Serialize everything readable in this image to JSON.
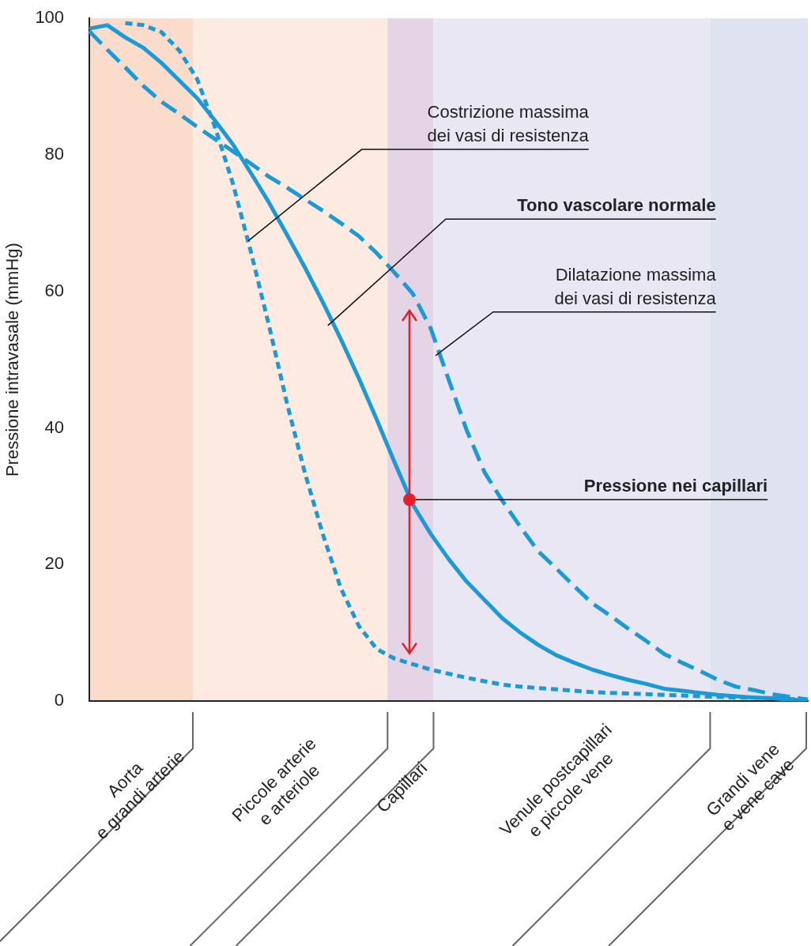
{
  "chart_data": {
    "type": "line",
    "ylabel": "Pressione intravasale (mmHg)",
    "categories": [
      null,
      null,
      null,
      null,
      null,
      null,
      null,
      null,
      null,
      null,
      null,
      null,
      null,
      null,
      null,
      null,
      null,
      null,
      null,
      null,
      null,
      null,
      null,
      null,
      null,
      null,
      null,
      null,
      null,
      null,
      null,
      null,
      null,
      null,
      null,
      null,
      null,
      null,
      null,
      null,
      null
    ],
    "ylim": [
      0,
      100
    ],
    "yticks": [
      0,
      20,
      40,
      60,
      80,
      100
    ],
    "tick_labels": "y",
    "marker": "none",
    "series": [
      {
        "color": "#1a9ad6",
        "line_style": "solid",
        "values": [
          98.5,
          99,
          97.2,
          95.7,
          93.5,
          90.9,
          88.3,
          85,
          81.5,
          77.3,
          73,
          68.3,
          63.5,
          58.4,
          53,
          47.3,
          41.2,
          34.9,
          28.8,
          24.5,
          20.8,
          17.5,
          14.8,
          12.1,
          10,
          8.2,
          6.7,
          5.6,
          4.6,
          3.8,
          3.1,
          2.5,
          1.8,
          1.5,
          1.2,
          0.9,
          0.7,
          0.5,
          0.4,
          0.2,
          0.1
        ]
      },
      {
        "color": "#1a9ad6",
        "line_style": "dotted",
        "values": [
          null,
          null,
          99.3,
          99,
          98,
          95.3,
          91.1,
          84,
          75.7,
          65.7,
          55,
          43.6,
          33.4,
          24.4,
          16.5,
          11,
          7.6,
          6.2,
          5.4,
          4.6,
          4,
          3.4,
          2.9,
          2.4,
          2.1,
          1.9,
          1.7,
          1.5,
          1.3,
          1.2,
          1.1,
          1,
          0.9,
          0.8,
          0.7,
          0.6,
          0.5,
          0.5,
          0.4,
          0.3,
          0.2
        ]
      },
      {
        "color": "#1a9ad6",
        "line_style": "dashed",
        "values": [
          98.1,
          95.4,
          92.8,
          90.1,
          87.8,
          86,
          84.1,
          82.3,
          80.5,
          78.7,
          76.8,
          75.2,
          73.5,
          71.8,
          70,
          68.1,
          65.6,
          62.7,
          59.7,
          54.6,
          47.1,
          39.7,
          33.5,
          29.3,
          25.5,
          21.9,
          19.4,
          16.8,
          14.3,
          12.5,
          10.6,
          8.8,
          6.9,
          5.6,
          4.4,
          3.1,
          2.1,
          1.6,
          1,
          0.6,
          0.2
        ]
      }
    ],
    "annotations": [
      "Costrizione massima\ndei vasi di resistenza",
      "Tono vascolare normale",
      "Dilatazione massima\ndei vasi di resistenza",
      "Pressione nei capillari",
      "Aorta\ne grandi arterie",
      "Piccole arterie\ne arteriole",
      "Capillari",
      "Venule postcapillari\ne piccole vene",
      "Grandi vene\ne vene cave"
    ]
  }
}
